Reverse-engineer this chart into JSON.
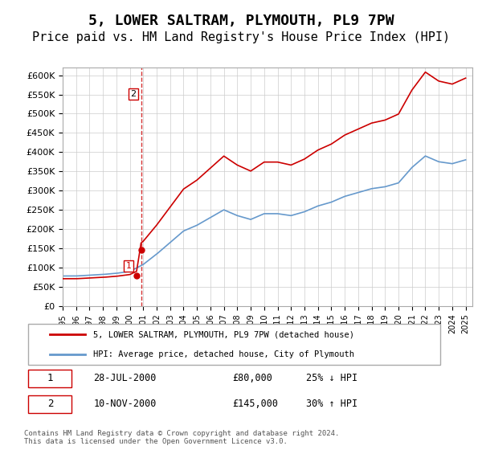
{
  "title": "5, LOWER SALTRAM, PLYMOUTH, PL9 7PW",
  "subtitle": "Price paid vs. HM Land Registry's House Price Index (HPI)",
  "title_fontsize": 13,
  "subtitle_fontsize": 11,
  "ylabel": "",
  "background_color": "#ffffff",
  "grid_color": "#cccccc",
  "red_line_color": "#cc0000",
  "blue_line_color": "#6699cc",
  "transaction1": {
    "date": "28-JUL-2000",
    "price": 80000,
    "label": "1",
    "pct": "25% ↓ HPI"
  },
  "transaction2": {
    "date": "10-NOV-2000",
    "price": 145000,
    "label": "2",
    "pct": "30% ↑ HPI"
  },
  "legend_label_red": "5, LOWER SALTRAM, PLYMOUTH, PL9 7PW (detached house)",
  "legend_label_blue": "HPI: Average price, detached house, City of Plymouth",
  "footer": "Contains HM Land Registry data © Crown copyright and database right 2024.\nThis data is licensed under the Open Government Licence v3.0.",
  "ylim": [
    0,
    620000
  ],
  "yticks": [
    0,
    50000,
    100000,
    150000,
    200000,
    250000,
    300000,
    350000,
    400000,
    450000,
    500000,
    550000,
    600000
  ],
  "xlim_start": 1995.0,
  "xlim_end": 2025.5
}
